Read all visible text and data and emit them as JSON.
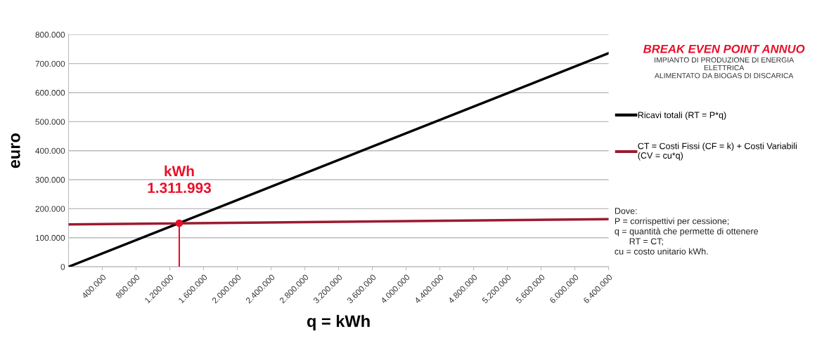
{
  "chart_data": {
    "type": "line",
    "title": "BREAK EVEN POINT ANNUO",
    "subtitle": "IMPIANTO DI PRODUZIONE DI ENERGIA\nELETTRICA\nALIMENTATO DA BIOGAS DI DISCARICA",
    "xlabel": "q = kWh",
    "ylabel": "euro",
    "x": [
      0,
      6400000
    ],
    "series": [
      {
        "name": "Ricavi totali (RT = P*q)",
        "color": "#000000",
        "values": [
          0,
          736000
        ]
      },
      {
        "name": "CT = Costi Fissi (CF = k) + Costi Variabili\n(CV = cu*q)",
        "color": "#9b1b30",
        "values": [
          146000,
          164000
        ]
      },
      {
        "type": "lollipop",
        "color": "#e8102a",
        "marker": "circle",
        "x": [
          1311993
        ],
        "values": [
          150000
        ]
      }
    ],
    "annotations": [
      {
        "text": "kWh\n1.311.993",
        "x": 1311993,
        "y": 150000
      },
      "Dove:\nP = corrispettivi per cessione;\nq = quantità che permette di ottenere\n      RT = CT;\ncu = costo unitario kWh."
    ],
    "xlim": [
      0,
      6400000
    ],
    "xticks": [
      {
        "value": 400000,
        "label": "400.000"
      },
      {
        "value": 800000,
        "label": "800.000"
      },
      {
        "value": 1200000,
        "label": "1.200.000"
      },
      {
        "value": 1600000,
        "label": "1.600.000"
      },
      {
        "value": 2000000,
        "label": "2.000.000"
      },
      {
        "value": 2400000,
        "label": "2.400.000"
      },
      {
        "value": 2800000,
        "label": "2.800.000"
      },
      {
        "value": 3200000,
        "label": "3.200.000"
      },
      {
        "value": 3600000,
        "label": "3.600.000"
      },
      {
        "value": 4000000,
        "label": "4.000.000"
      },
      {
        "value": 4400000,
        "label": "4.400.000"
      },
      {
        "value": 4800000,
        "label": "4.800.000"
      },
      {
        "value": 5200000,
        "label": "5.200.000"
      },
      {
        "value": 5600000,
        "label": "5.600.000"
      },
      {
        "value": 6000000,
        "label": "6.000.000"
      },
      {
        "value": 6400000,
        "label": "6.400.000"
      }
    ],
    "ylim": [
      0,
      800000
    ],
    "yticks": [
      0,
      {
        "value": 100000,
        "label": "100.000"
      },
      {
        "value": 200000,
        "label": "200.000"
      },
      {
        "value": 300000,
        "label": "300.000"
      },
      {
        "value": 400000,
        "label": "400.000"
      },
      {
        "value": 500000,
        "label": "500.000"
      },
      {
        "value": 600000,
        "label": "600.000"
      },
      {
        "value": 700000,
        "label": "700.000"
      },
      {
        "value": 800000,
        "label": "800.000"
      }
    ],
    "grid": "y",
    "legend": "right",
    "line_style": "solid"
  }
}
